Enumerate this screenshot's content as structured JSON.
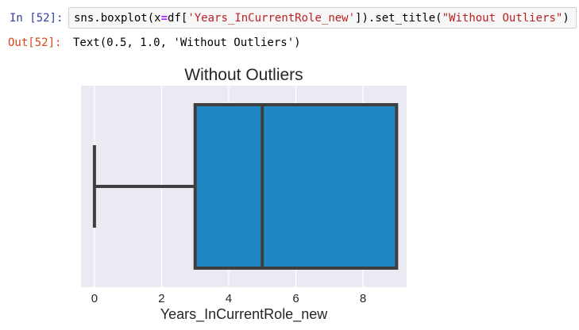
{
  "cell": {
    "in_prompt": "In [52]:",
    "out_prompt": "Out[52]:",
    "code": {
      "func": "sns.boxplot(x",
      "eq": "=",
      "mid": "df[",
      "col": "'Years_InCurrentRole_new'",
      "call": "]).set_title(",
      "title_arg": "\"Without Outliers\"",
      "close": ")"
    },
    "output": "Text(0.5, 1.0, 'Without Outliers')"
  },
  "chart_data": {
    "type": "box",
    "title": "Without Outliers",
    "xlabel": "Years_InCurrentRole_new",
    "ylabel": "",
    "xlim": [
      -0.4,
      9.3
    ],
    "xticks": [
      0,
      2,
      4,
      6,
      8
    ],
    "xtick_labels": [
      "0",
      "2",
      "4",
      "6",
      "8"
    ],
    "grid": true,
    "box": {
      "whisker_low": 0,
      "q1": 3,
      "median": 5,
      "q3": 9,
      "whisker_high": 9
    },
    "colors": {
      "box_fill": "#1f87c1",
      "box_edge": "#3f3f3f",
      "background": "#eaeaf2",
      "grid": "#ffffff"
    }
  }
}
